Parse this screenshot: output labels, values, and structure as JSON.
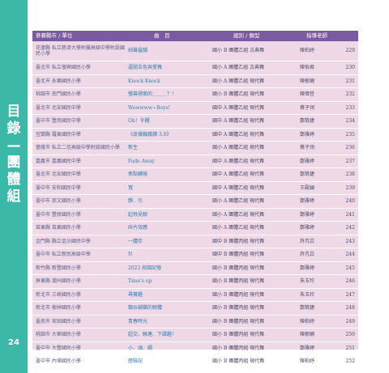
{
  "side": {
    "title_chars": [
      "目",
      "錄",
      "—",
      "團",
      "體",
      "組"
    ],
    "page_number": "24"
  },
  "header": {
    "school": "參賽縣市 / 單位",
    "piece": "曲　目",
    "group": "組別 / 類型",
    "teacher": "指導老師"
  },
  "rows": [
    {
      "school": "花蓮縣 私立慈濟大學附屬高級中學附設國民小學",
      "piece": "純聲靈韻",
      "group": "國小 B 團體乙組 古典舞",
      "teacher": "陳柏妤",
      "page": "229"
    },
    {
      "school": "臺北市 私立復興國民小學",
      "piece": "逼隨舌色與愛舞",
      "group": "國小 A 團體乙組 古典舞",
      "teacher": "陳怡君",
      "page": "230"
    },
    {
      "school": "臺北市 永樂國民小學",
      "piece": "Knock Knock",
      "group": "國小 A 團體乙組 現代舞",
      "teacher": "陳郁姍",
      "page": "231"
    },
    {
      "school": "桃園市 南門國民小學",
      "piece": "螢幕裡面的＿＿＿？！",
      "group": "國小 B 團體乙組 現代舞",
      "teacher": "陳偉哲",
      "page": "232"
    },
    {
      "school": "臺北市 北安國民中學",
      "piece": "Wowwww~Boys!",
      "group": "國中 A 團體乙組 現代舞",
      "teacher": "蔡子翎",
      "page": "233"
    },
    {
      "school": "臺中市 豐南國民中學",
      "piece": "Oh！半醒",
      "group": "國中 A 團體乙組 現代舞",
      "teacher": "鄭筑緁",
      "page": "234"
    },
    {
      "school": "宜蘭縣 羅東國民中學",
      "piece": "《皮膚饑餓讀 3.0》",
      "group": "國中 A 團體乙組 現代舞",
      "teacher": "鄭雅婷",
      "page": "235"
    },
    {
      "school": "基隆市 私立二信高級中學附設國民小學",
      "piece": "新生",
      "group": "國小 A 團體乙組 現代舞",
      "teacher": "蔡子翎",
      "page": "236"
    },
    {
      "school": "嘉義市 嘉義國民中學",
      "piece": "Fade Away",
      "group": "國中 A 團體乙組 現代舞",
      "teacher": "鄭雅婷",
      "page": "237"
    },
    {
      "school": "臺北市 北安國民中學",
      "piece": "焦點轉換",
      "group": "國中 A 團體乙組 現代舞",
      "teacher": "鄭筑緁",
      "page": "238"
    },
    {
      "school": "臺中市 安和國民中學",
      "piece": "寬",
      "group": "國中 A 團體乙組 現代舞",
      "teacher": "王殿穎",
      "page": "239"
    },
    {
      "school": "臺中市 崇文國民小學",
      "piece": "靜．引",
      "group": "國小 A 團體乙組 現代舞",
      "teacher": "鄭雅婷",
      "page": "240"
    },
    {
      "school": "臺中市 豐原國民小學",
      "piece": "起飛見鯨",
      "group": "國小 A 團體乙組 現代舞",
      "teacher": "鄭雅婷",
      "page": "241"
    },
    {
      "school": "苗栗縣 苗栗國民小學",
      "piece": "碎片效應",
      "group": "國小 A 團體乙組 現代舞",
      "teacher": "鄭雅婷",
      "page": "242"
    },
    {
      "school": "金門縣 縣立金沙國民中學",
      "piece": "一體存",
      "group": "國中 B 團體丙組 現代舞",
      "teacher": "許芃苡",
      "page": "243"
    },
    {
      "school": "臺中市 私立新民高級中學",
      "piece": "N",
      "group": "國中 B 團體丙組 現代舞",
      "teacher": "許芃苡",
      "page": "244"
    },
    {
      "school": "新竹縣 新豐國民小學",
      "piece": "2022 校園記憶",
      "group": "國小 B 團體丙組 現代舞",
      "teacher": "鄭雅婷",
      "page": "245"
    },
    {
      "school": "屏東縣 潮州國民小學",
      "piece": "Time's up",
      "group": "國小 B 團體丙組 現代舞",
      "teacher": "朱玉玲",
      "page": "246"
    },
    {
      "school": "新北市 三峽國民小學",
      "piece": "尋寶趣",
      "group": "國小 B 團體丙組 現代舞",
      "teacher": "朱玉玲",
      "page": "247"
    },
    {
      "school": "新北市 樹林國民小學",
      "piece": "類似蝴蝶的鯨體",
      "group": "國小 B 團體丙組 現代舞",
      "teacher": "鄭筑緁",
      "page": "248"
    },
    {
      "school": "臺南市 官田國民小學",
      "piece": "青春時光",
      "group": "國小 B 團體丙組 現代舞",
      "teacher": "陳柏妤",
      "page": "249"
    },
    {
      "school": "桃園市 大華國民小學",
      "piece": "超交、聯連、下課趣！",
      "group": "國小 B 團體丙組 現代舞",
      "teacher": "陳郁姍",
      "page": "250"
    },
    {
      "school": "臺中市 大豐國民小學",
      "piece": "小．頑．踢",
      "group": "國小 B 團體丙組 現代舞",
      "teacher": "鄭雅婷",
      "page": "251"
    },
    {
      "school": "臺中市 內埔國民小學",
      "piece": "歷險記",
      "group": "國小 B 團體丙組 現代舞",
      "teacher": "陳柏妤",
      "page": "252"
    }
  ],
  "colors": {
    "side_tab": "#3cb8a8",
    "header": "#7a5aa0",
    "table_bg": "#efd9e6",
    "piece_text": "#2f7fb0"
  }
}
